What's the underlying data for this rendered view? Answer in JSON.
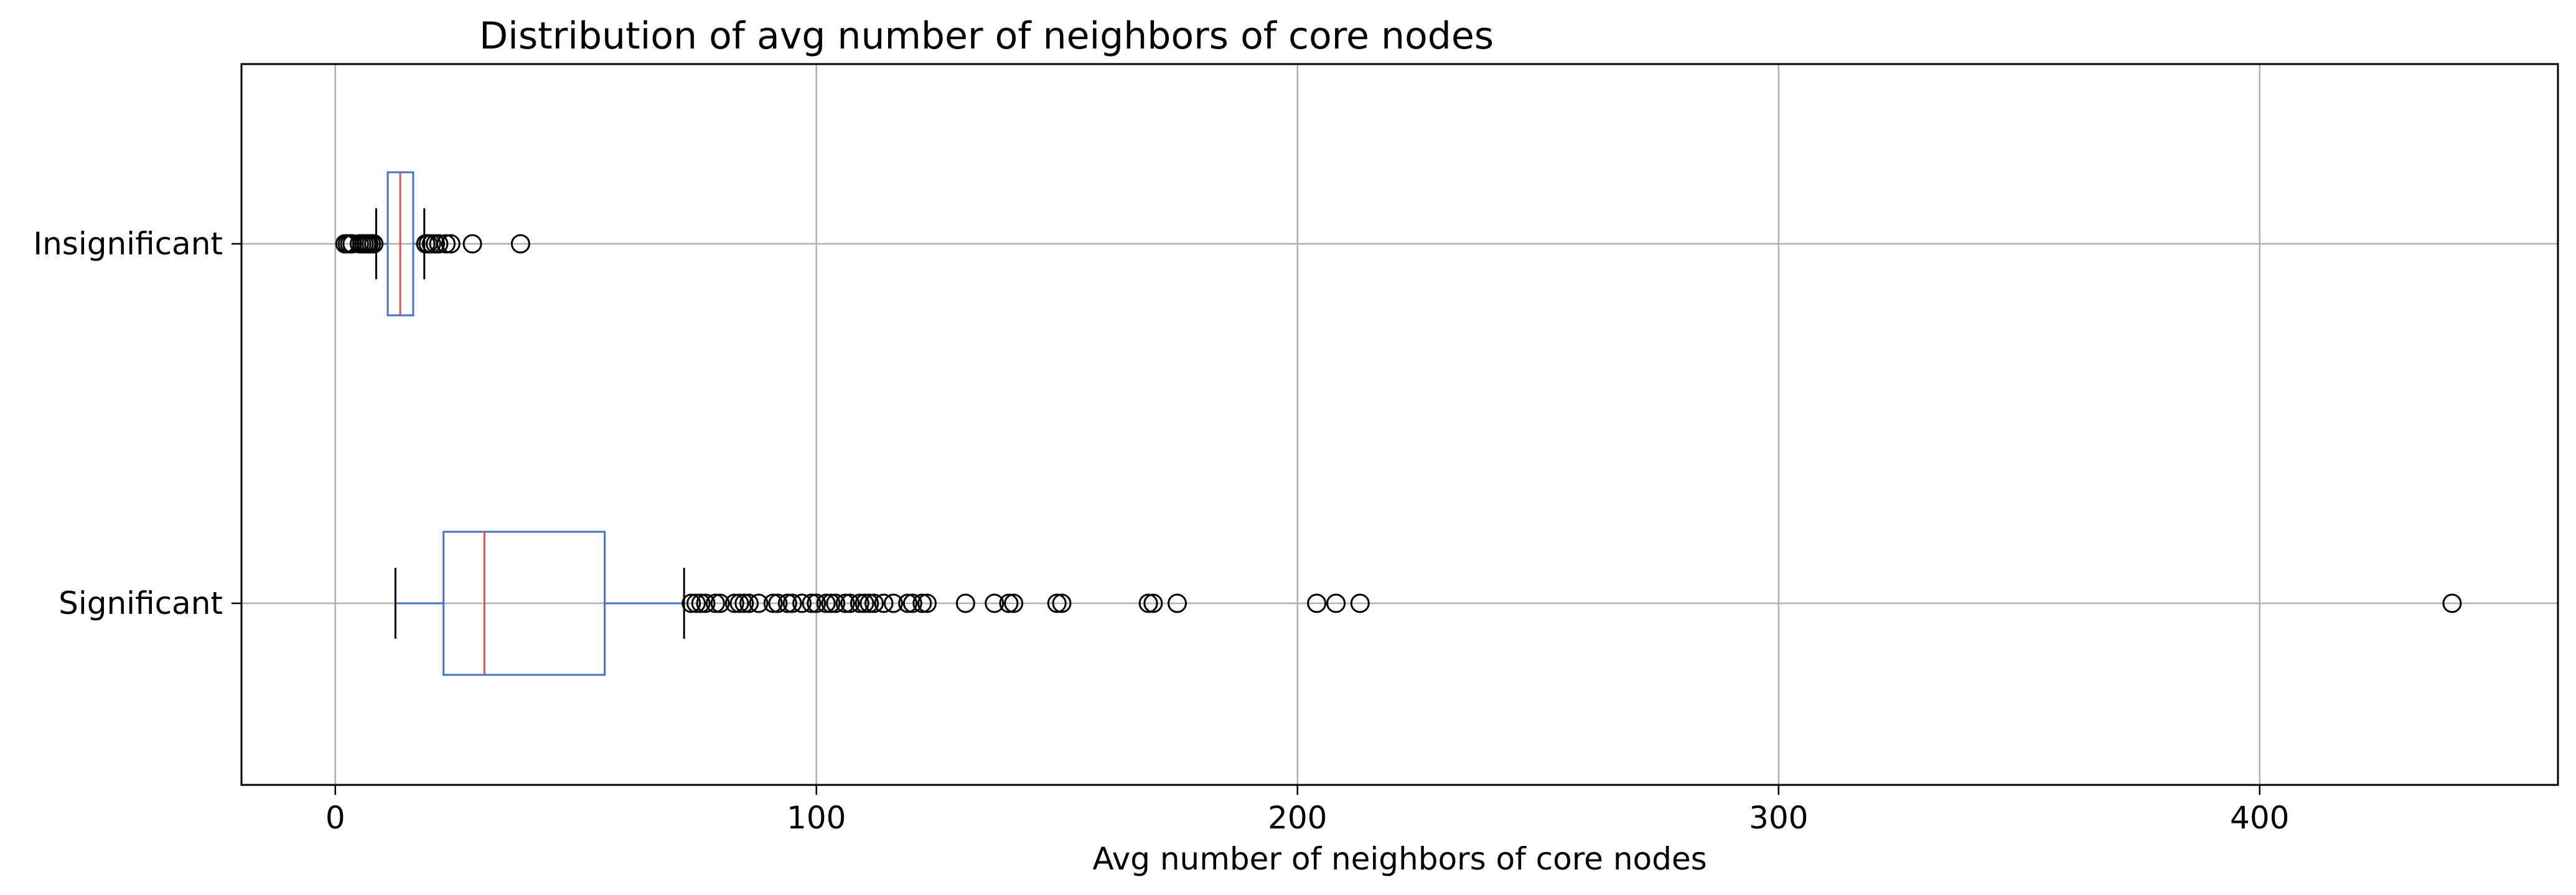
{
  "chart_data": {
    "type": "boxplot",
    "orientation": "horizontal",
    "title": "Distribution of avg number of neighbors of core nodes",
    "xlabel": "Avg number of neighbors of core nodes",
    "ylabel": "",
    "xlim": [
      -19.5,
      462
    ],
    "x_ticks": [
      0,
      100,
      200,
      300,
      400
    ],
    "grid": true,
    "legend": "none",
    "colors": {
      "box": "#4472c4",
      "median": "#d9534f",
      "whisker": "#4472c4",
      "cap": "#000000",
      "outlier": "#000000",
      "grid": "#b0b0b0",
      "frame": "#000000"
    },
    "categories": [
      "Insignificant",
      "Significant"
    ],
    "series": [
      {
        "category": "Insignificant",
        "whisker_low": 8.5,
        "q1": 10.9,
        "median": 13.5,
        "q3": 16.2,
        "whisker_high": 18.5,
        "outliers": [
          2.0,
          2.5,
          3.0,
          3.5,
          5.0,
          5.5,
          6.0,
          6.5,
          7.0,
          7.5,
          8.0,
          18.8,
          19.3,
          20.0,
          20.8,
          21.5,
          23.0,
          24.0,
          28.5,
          38.5
        ]
      },
      {
        "category": "Significant",
        "whisker_low": 12.5,
        "q1": 22.5,
        "median": 31.0,
        "q3": 56.0,
        "whisker_high": 72.5,
        "outliers": [
          74,
          75,
          76,
          77,
          79,
          80,
          83,
          84,
          85,
          86,
          88,
          91,
          92,
          94,
          95,
          97,
          99,
          100,
          102,
          103,
          104,
          106,
          107,
          109,
          110,
          111,
          112,
          114,
          116,
          119,
          120,
          122,
          123,
          131,
          137,
          140,
          141,
          150,
          151,
          169,
          170,
          175,
          204,
          208,
          213,
          440
        ]
      }
    ]
  }
}
